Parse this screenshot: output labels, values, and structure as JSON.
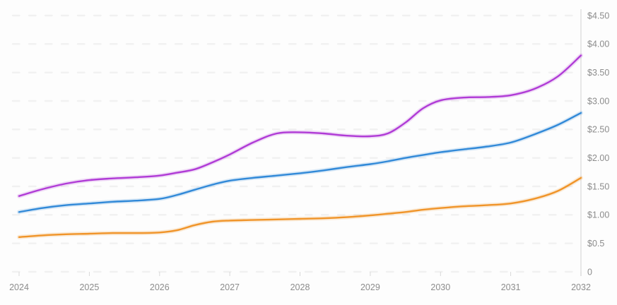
{
  "chart_data": {
    "type": "line",
    "title": "",
    "legend": "none",
    "grid": "horizontal-dashed",
    "xlim": [
      2024,
      2032
    ],
    "ylim": [
      0,
      4.5
    ],
    "x_axis": {
      "position": "bottom",
      "ticks": [
        {
          "value": 2024,
          "label": "2024"
        },
        {
          "value": 2025,
          "label": "2025"
        },
        {
          "value": 2026,
          "label": "2026"
        },
        {
          "value": 2027,
          "label": "2027"
        },
        {
          "value": 2028,
          "label": "2028"
        },
        {
          "value": 2029,
          "label": "2029"
        },
        {
          "value": 2030,
          "label": "2030"
        },
        {
          "value": 2031,
          "label": "2031"
        },
        {
          "value": 2032,
          "label": "2032"
        }
      ]
    },
    "y_axis": {
      "position": "right",
      "ticks": [
        {
          "value": 4.5,
          "label": "$4.50"
        },
        {
          "value": 4.0,
          "label": "$4.00"
        },
        {
          "value": 3.5,
          "label": "$3.50"
        },
        {
          "value": 3.0,
          "label": "$3.00"
        },
        {
          "value": 2.5,
          "label": "$2.50"
        },
        {
          "value": 2.0,
          "label": "$2.00"
        },
        {
          "value": 1.5,
          "label": "$1.50"
        },
        {
          "value": 1.0,
          "label": "$1.00"
        },
        {
          "value": 0.5,
          "label": "$0.5"
        },
        {
          "value": 0,
          "label": "0"
        }
      ]
    },
    "x": [
      2024,
      2024.33,
      2024.67,
      2025,
      2025.33,
      2025.67,
      2026,
      2026.25,
      2026.5,
      2026.75,
      2027,
      2027.33,
      2027.67,
      2028,
      2028.33,
      2028.67,
      2029,
      2029.25,
      2029.5,
      2029.75,
      2030,
      2030.33,
      2030.67,
      2031,
      2031.33,
      2031.67,
      2032
    ],
    "series": [
      {
        "name": "magenta-line",
        "color": "#b03bd6",
        "values": [
          1.33,
          1.45,
          1.55,
          1.61,
          1.64,
          1.66,
          1.69,
          1.74,
          1.8,
          1.92,
          2.06,
          2.27,
          2.43,
          2.45,
          2.43,
          2.39,
          2.38,
          2.43,
          2.62,
          2.87,
          3.01,
          3.06,
          3.07,
          3.1,
          3.21,
          3.43,
          3.8
        ]
      },
      {
        "name": "blue-line",
        "color": "#3189d8",
        "values": [
          1.05,
          1.12,
          1.17,
          1.2,
          1.23,
          1.25,
          1.28,
          1.35,
          1.44,
          1.53,
          1.6,
          1.65,
          1.69,
          1.73,
          1.78,
          1.84,
          1.89,
          1.94,
          2.0,
          2.05,
          2.1,
          2.15,
          2.2,
          2.27,
          2.41,
          2.58,
          2.79
        ]
      },
      {
        "name": "orange-line",
        "color": "#f09429",
        "values": [
          0.61,
          0.64,
          0.66,
          0.67,
          0.68,
          0.68,
          0.69,
          0.73,
          0.82,
          0.88,
          0.9,
          0.91,
          0.92,
          0.93,
          0.94,
          0.96,
          0.99,
          1.02,
          1.05,
          1.09,
          1.12,
          1.15,
          1.17,
          1.2,
          1.28,
          1.42,
          1.65
        ]
      }
    ]
  },
  "colors": {
    "background": "#fdfdfd",
    "grid": "#f1f1f1",
    "axis_line": "#e0e0e0",
    "year_tick": "#d9d9d9",
    "label_text": "#8c8c8c"
  }
}
